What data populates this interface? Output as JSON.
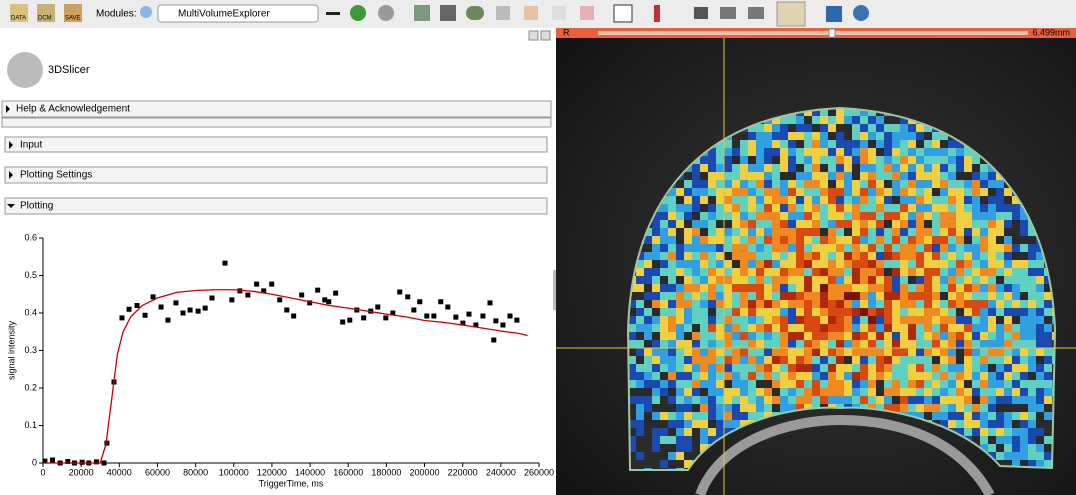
{
  "toolbar": {
    "buttons": [
      "DATA",
      "DCM",
      "SAVE"
    ],
    "modules_label": "Modules:",
    "module": "MultiVolumeExplorer"
  },
  "panel": {
    "logo": "3DSlicer",
    "sections": [
      "Help & Acknowledgement",
      "Input",
      "Plotting Settings",
      "Plotting"
    ]
  },
  "slice_view": {
    "orientation": "R",
    "offset": "6.499mm"
  },
  "chart_data": {
    "type": "scatter",
    "x_label": "TriggerTime, ms",
    "y_label": "signal intensity",
    "xlim": [
      0,
      260000
    ],
    "ylim": [
      0,
      0.6
    ],
    "xticks": [
      0,
      20000,
      40000,
      60000,
      80000,
      100000,
      120000,
      140000,
      160000,
      180000,
      200000,
      220000,
      240000,
      260000
    ],
    "yticks": [
      0,
      0.1,
      0.2,
      0.3,
      0.4,
      0.5,
      0.6
    ],
    "series": [
      {
        "type": "scatter",
        "color": "#000000",
        "x": [
          1000,
          5000,
          9000,
          13000,
          16500,
          20500,
          24000,
          28000,
          32000,
          33500,
          37200,
          41400,
          45100,
          49300,
          53500,
          57700,
          61900,
          65500,
          69700,
          73400,
          77100,
          81300,
          85000,
          88600,
          95400,
          99000,
          103200,
          107400,
          112000,
          115700,
          119900,
          124100,
          127800,
          131400,
          135600,
          139800,
          144000,
          147700,
          149800,
          153400,
          157100,
          160800,
          164500,
          168100,
          171800,
          175500,
          179700,
          183400,
          187000,
          191200,
          194400,
          197500,
          201200,
          204900,
          208500,
          212200,
          216400,
          220100,
          223300,
          226900,
          230600,
          234300,
          236300,
          237400,
          241100,
          244800,
          248400
        ],
        "values": [
          0.005,
          0.008,
          0,
          0.004,
          0,
          0.002,
          0,
          0.003,
          0,
          0.053,
          0.216,
          0.387,
          0.41,
          0.42,
          0.394,
          0.443,
          0.416,
          0.381,
          0.427,
          0.4,
          0.408,
          0.405,
          0.413,
          0.44,
          0.533,
          0.435,
          0.459,
          0.448,
          0.477,
          0.459,
          0.477,
          0.435,
          0.408,
          0.392,
          0.448,
          0.427,
          0.461,
          0.435,
          0.43,
          0.453,
          0.376,
          0.381,
          0.408,
          0.387,
          0.405,
          0.416,
          0.387,
          0.4,
          0.456,
          0.443,
          0.408,
          0.43,
          0.392,
          0.392,
          0.43,
          0.416,
          0.389,
          0.373,
          0.397,
          0.368,
          0.392,
          0.427,
          0.328,
          0.379,
          0.368,
          0.392,
          0.381
        ]
      },
      {
        "type": "line",
        "color": "#cc0000",
        "x": [
          0,
          30000,
          33000,
          36000,
          39000,
          42000,
          46000,
          52000,
          60000,
          70000,
          80000,
          90000,
          100000,
          110000,
          120000,
          130000,
          140000,
          150000,
          160000,
          170000,
          180000,
          190000,
          200000,
          210000,
          220000,
          230000,
          240000,
          250000,
          254000
        ],
        "values": [
          0,
          0,
          0.05,
          0.17,
          0.29,
          0.35,
          0.39,
          0.42,
          0.44,
          0.455,
          0.46,
          0.462,
          0.462,
          0.458,
          0.45,
          0.44,
          0.43,
          0.42,
          0.413,
          0.405,
          0.397,
          0.39,
          0.38,
          0.375,
          0.368,
          0.36,
          0.352,
          0.345,
          0.34
        ]
      }
    ]
  }
}
